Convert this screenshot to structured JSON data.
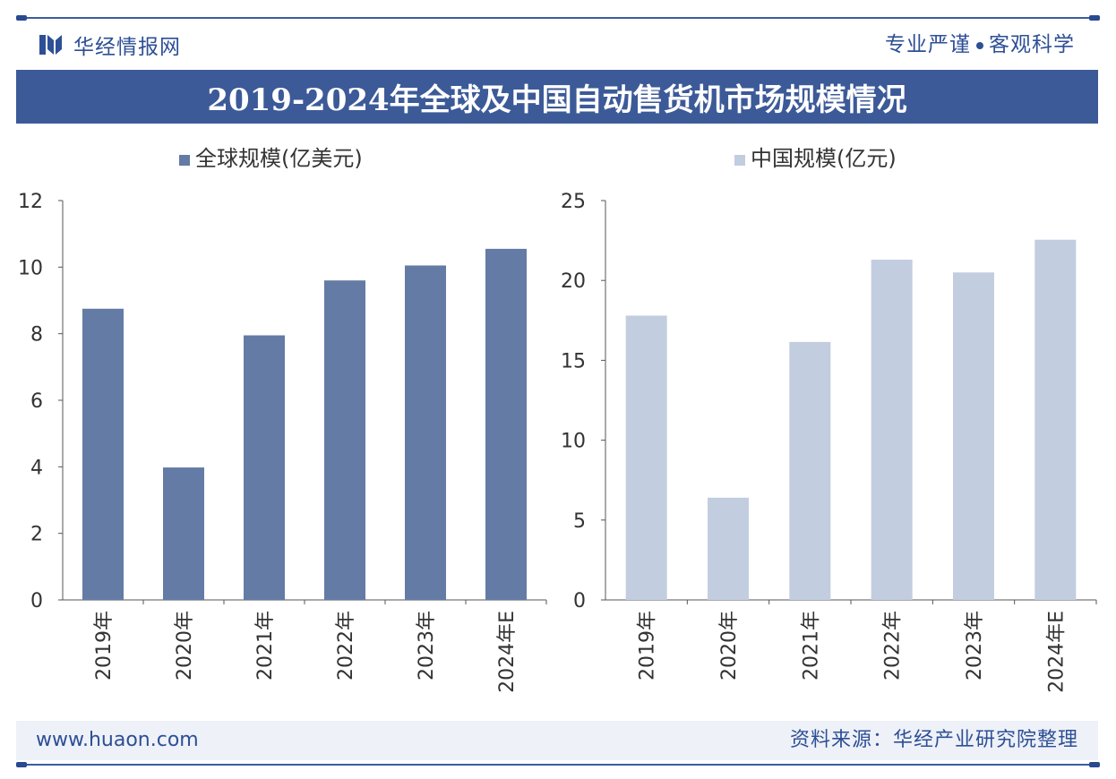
{
  "header": {
    "brand": "华经情报网",
    "slogan_left": "专业严谨",
    "slogan_right": "客观科学",
    "title": "2019-2024年全球及中国自动售货机市场规模情况"
  },
  "footer": {
    "url": "www.huaon.com",
    "source": "资料来源：华经产业研究院整理"
  },
  "colors": {
    "brand": "#2d4f96",
    "title_bg": "#3c5a98",
    "global_bar": "#637ba5",
    "china_bar": "#c3cde0"
  },
  "chart_data": [
    {
      "type": "bar",
      "legend": "全球规模(亿美元)",
      "categories": [
        "2019年",
        "2020年",
        "2021年",
        "2022年",
        "2023年",
        "2024年E"
      ],
      "values": [
        8.75,
        3.98,
        7.95,
        9.6,
        10.05,
        10.55
      ],
      "ylim": [
        0,
        12
      ],
      "yticks": [
        "0",
        "2",
        "4",
        "6",
        "8",
        "10",
        "12"
      ],
      "ytick_values": [
        0,
        2,
        4,
        6,
        8,
        10,
        12
      ],
      "color": "#637ba5"
    },
    {
      "type": "bar",
      "legend": "中国规模(亿元)",
      "categories": [
        "2019年",
        "2020年",
        "2021年",
        "2022年",
        "2023年",
        "2024年E"
      ],
      "values": [
        17.8,
        6.4,
        16.15,
        21.3,
        20.5,
        22.55
      ],
      "ylim": [
        0,
        25
      ],
      "yticks": [
        "0",
        "5",
        "10",
        "15",
        "20",
        "25"
      ],
      "ytick_values": [
        0,
        5,
        10,
        15,
        20,
        25
      ],
      "color": "#c3cde0"
    }
  ]
}
